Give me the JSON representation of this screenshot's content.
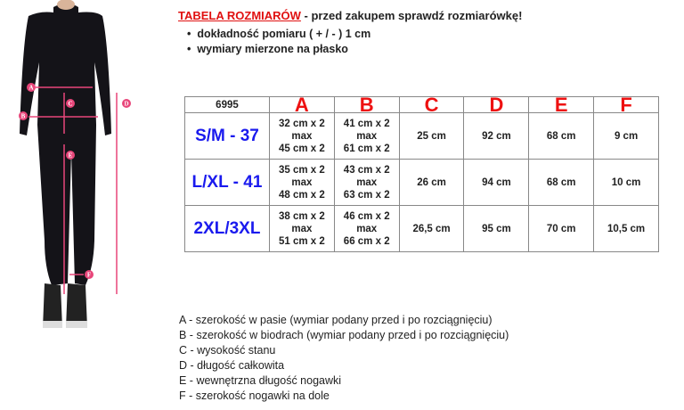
{
  "header": {
    "title": "TABELA ROZMIARÓW",
    "subtitle": " - przed zakupem sprawdź rozmiarówkę!"
  },
  "bullets": [
    "dokładność pomiaru ( + / - ) 1 cm",
    "wymiary mierzone na płasko"
  ],
  "figure": {
    "markers": [
      "A",
      "B",
      "C",
      "D",
      "E",
      "F"
    ],
    "accent": "#e8467a"
  },
  "table": {
    "corner": "6995",
    "columns": [
      "A",
      "B",
      "C",
      "D",
      "E",
      "F"
    ],
    "rows": [
      {
        "size": "S/M - 37",
        "cells": [
          [
            "32 cm x 2",
            "max",
            "45 cm x 2"
          ],
          [
            "41 cm x 2",
            "max",
            "61 cm x 2"
          ],
          "25 cm",
          "92 cm",
          "68 cm",
          "9 cm"
        ]
      },
      {
        "size": "L/XL - 41",
        "cells": [
          [
            "35 cm x 2",
            "max",
            "48 cm x 2"
          ],
          [
            "43 cm x 2",
            "max",
            "63 cm x 2"
          ],
          "26 cm",
          "94 cm",
          "68 cm",
          "10 cm"
        ]
      },
      {
        "size": "2XL/3XL",
        "cells": [
          [
            "38 cm x 2",
            "max",
            "51 cm x 2"
          ],
          [
            "46 cm x 2",
            "max",
            "66 cm x 2"
          ],
          "26,5 cm",
          "95 cm",
          "70 cm",
          "10,5 cm"
        ]
      }
    ]
  },
  "legend": [
    "A - szerokość w pasie (wymiar podany przed i po rozciągnięciu)",
    "B - szerokość w biodrach (wymiar podany przed i po rozciągnięciu)",
    "C - wysokość stanu",
    "D - długość całkowita",
    "E - wewnętrzna długość nogawki",
    "F - szerokość nogawki na dole"
  ]
}
